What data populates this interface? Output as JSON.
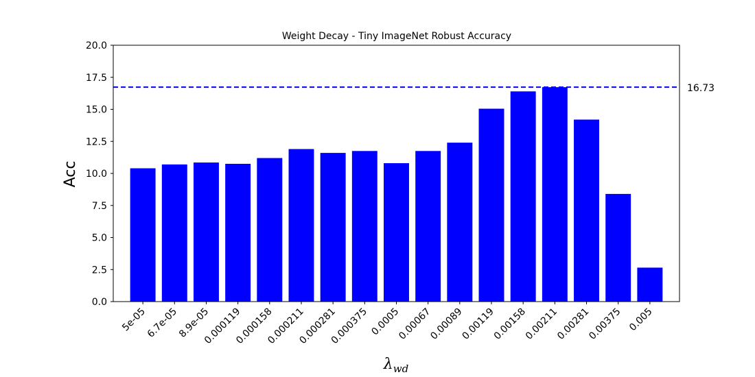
{
  "chart_data": {
    "type": "bar",
    "title": "Weight Decay - Tiny ImageNet Robust Accuracy",
    "xlabel": "λ",
    "xlabel_subscript": "wd",
    "ylabel": "Acc",
    "categories": [
      "5e-05",
      "6.7e-05",
      "8.9e-05",
      "0.000119",
      "0.000158",
      "0.000211",
      "0.000281",
      "0.000375",
      "0.0005",
      "0.00067",
      "0.00089",
      "0.00119",
      "0.00158",
      "0.00211",
      "0.00281",
      "0.00375",
      "0.005"
    ],
    "values": [
      10.4,
      10.7,
      10.85,
      10.75,
      11.2,
      11.9,
      11.6,
      11.75,
      10.8,
      11.75,
      12.4,
      15.05,
      16.4,
      16.73,
      14.2,
      8.4,
      2.65
    ],
    "ylim": [
      0,
      20
    ],
    "yticks": [
      "0.0",
      "2.5",
      "5.0",
      "7.5",
      "10.0",
      "12.5",
      "15.0",
      "17.5",
      "20.0"
    ],
    "bar_color": "#0000ff",
    "reference_line": {
      "value": 16.73,
      "label": "16.73",
      "color": "#0000ff",
      "style": "dashed"
    },
    "grid": false,
    "legend": "none"
  }
}
